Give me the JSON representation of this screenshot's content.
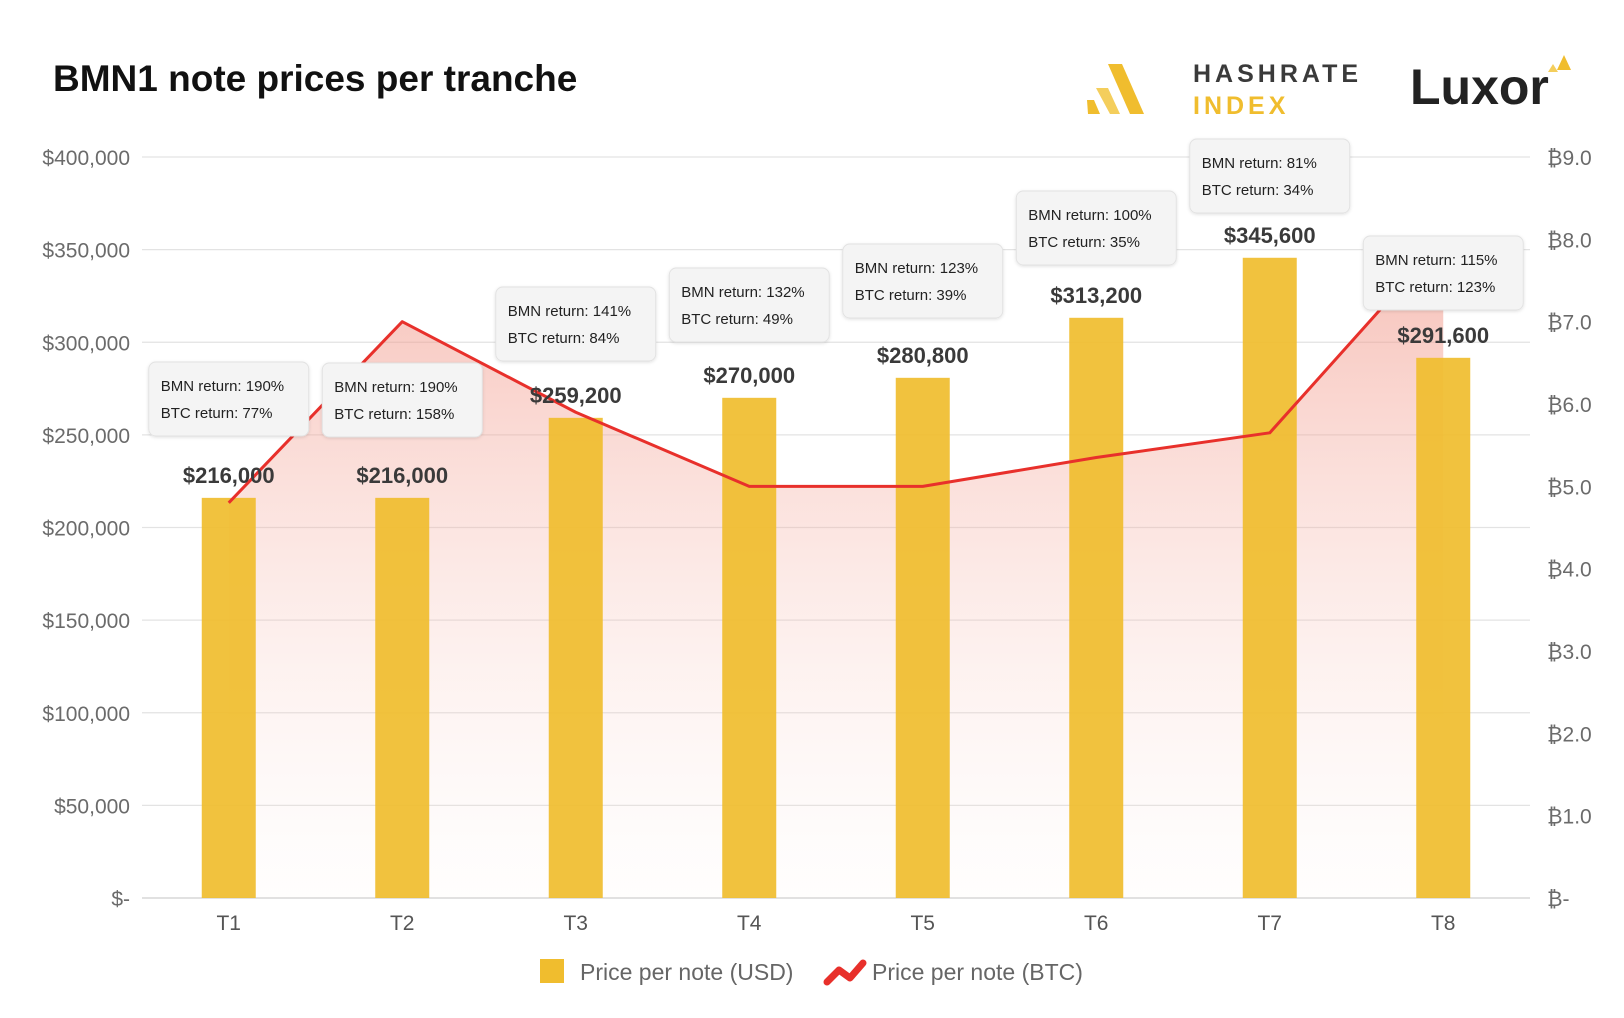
{
  "chart_data": {
    "type": "bar",
    "title": "BMN1 note prices per tranche",
    "categories": [
      "T1",
      "T2",
      "T3",
      "T4",
      "T5",
      "T6",
      "T7",
      "T8"
    ],
    "series": [
      {
        "name": "Price per note (USD)",
        "type": "bar",
        "axis": "left",
        "values": [
          216000,
          216000,
          259200,
          270000,
          280800,
          313200,
          345600,
          291600
        ],
        "labels": [
          "$216,000",
          "$216,000",
          "$259,200",
          "$270,000",
          "$280,800",
          "$313,200",
          "$345,600",
          "$291,600"
        ],
        "color": "#f0bd2e"
      },
      {
        "name": "Price per note (BTC)",
        "type": "line",
        "axis": "right",
        "values": [
          4.8,
          7.0,
          5.9,
          5.0,
          5.0,
          5.35,
          5.65,
          8.0
        ],
        "color": "#e8302b"
      }
    ],
    "annotations": [
      {
        "bmn": "BMN return: 190%",
        "btc": "BTC return: 77%"
      },
      {
        "bmn": "BMN return: 190%",
        "btc": "BTC return: 158%"
      },
      {
        "bmn": "BMN return: 141%",
        "btc": "BTC return: 84%"
      },
      {
        "bmn": "BMN return: 132%",
        "btc": "BTC return: 49%"
      },
      {
        "bmn": "BMN return: 123%",
        "btc": "BTC return: 39%"
      },
      {
        "bmn": "BMN return: 100%",
        "btc": "BTC return: 35%"
      },
      {
        "bmn": "BMN return: 81%",
        "btc": "BTC return: 34%"
      },
      {
        "bmn": "BMN return: 115%",
        "btc": "BTC return: 123%"
      }
    ],
    "y_left": {
      "ylim": [
        0,
        400000
      ],
      "ticks": [
        0,
        50000,
        100000,
        150000,
        200000,
        250000,
        300000,
        350000,
        400000
      ],
      "tick_labels": [
        "$-",
        "$50,000",
        "$100,000",
        "$150,000",
        "$200,000",
        "$250,000",
        "$300,000",
        "$350,000",
        "$400,000"
      ]
    },
    "y_right": {
      "ylim": [
        0,
        9
      ],
      "ticks": [
        0,
        1,
        2,
        3,
        4,
        5,
        6,
        7,
        8,
        9
      ],
      "tick_labels": [
        "₿-",
        "₿1.0",
        "₿2.0",
        "₿3.0",
        "₿4.0",
        "₿5.0",
        "₿6.0",
        "₿7.0",
        "₿8.0",
        "₿9.0"
      ]
    },
    "grid": true,
    "legend": {
      "position": "bottom-center",
      "items": [
        "Price per note (USD)",
        "Price per note (BTC)"
      ]
    }
  },
  "branding": {
    "hashrate_line1": "HASHRATE",
    "hashrate_line2": "INDEX",
    "luxor": "Luxor",
    "accent_color": "#f0bd2e"
  }
}
